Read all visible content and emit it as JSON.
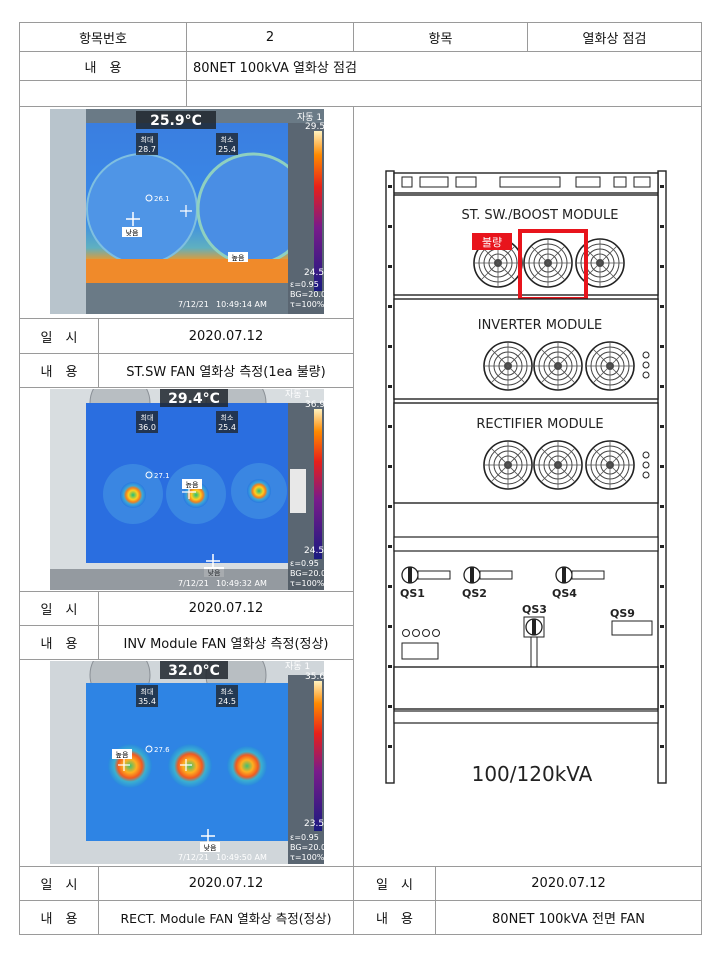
{
  "header": {
    "item_no_label": "항목번호",
    "item_no_value": "2",
    "item_label": "항목",
    "item_value": "열화상 점검",
    "content_label": "내　용",
    "content_value": "80NET 100kVA 열화상 점검"
  },
  "thermal_images": [
    {
      "temp": "25.9°C",
      "max_label": "최대",
      "max_value": "28.7",
      "min_label": "최소",
      "min_value": "25.4",
      "mode": "자동 1",
      "scale_top": "29.5",
      "scale_bottom": "24.5",
      "point_value": "26.1",
      "tag1": "낮음",
      "tag2": "높음",
      "emissivity": "ε=0.95",
      "bg": "BG=20.0",
      "tau": "τ=100%",
      "date": "7/12/21",
      "time": "10:49:14 AM"
    },
    {
      "temp": "29.4°C",
      "max_label": "최대",
      "max_value": "36.0",
      "min_label": "최소",
      "min_value": "25.4",
      "mode": "자동 1",
      "scale_top": "36.9",
      "scale_bottom": "24.5",
      "point_value": "27.1",
      "tag1": "높음",
      "tag2": "낮음",
      "emissivity": "ε=0.95",
      "bg": "BG=20.0",
      "tau": "τ=100%",
      "date": "7/12/21",
      "time": "10:49:32 AM"
    },
    {
      "temp": "32.0°C",
      "max_label": "최대",
      "max_value": "35.4",
      "min_label": "최소",
      "min_value": "24.5",
      "mode": "자동 1",
      "scale_top": "35.6",
      "scale_bottom": "23.5",
      "point_value": "27.6",
      "tag1": "높음",
      "tag2": "낮음",
      "emissivity": "ε=0.95",
      "bg": "BG=20.0",
      "tau": "τ=100%",
      "date": "7/12/21",
      "time": "10:49:50 AM"
    }
  ],
  "rows": [
    {
      "date_label": "일　시",
      "date": "2020.07.12",
      "content_label": "내　용",
      "content": "ST.SW FAN 열화상 측정(1ea 불량)"
    },
    {
      "date_label": "일　시",
      "date": "2020.07.12",
      "content_label": "내　용",
      "content": "INV Module FAN 열화상 측정(정상)"
    },
    {
      "date_label": "일　시",
      "date": "2020.07.12",
      "content_label": "내　용",
      "content": "RECT. Module FAN 열화상 측정(정상)"
    }
  ],
  "right_footer": {
    "date_label": "일　시",
    "date": "2020.07.12",
    "content_label": "내　용",
    "content": "80NET 100kVA 전면 FAN"
  },
  "diagram": {
    "module1": "ST. SW./BOOST MODULE",
    "module2": "INVERTER MODULE",
    "module3": "RECTIFIER MODULE",
    "defect_tag": "불량",
    "qs1": "QS1",
    "qs2": "QS2",
    "qs3": "QS3",
    "qs4": "QS4",
    "qs9": "QS9",
    "rating": "100/120kVA"
  },
  "colors": {
    "defect": "#e8141c",
    "border": "#9a9a9a"
  }
}
